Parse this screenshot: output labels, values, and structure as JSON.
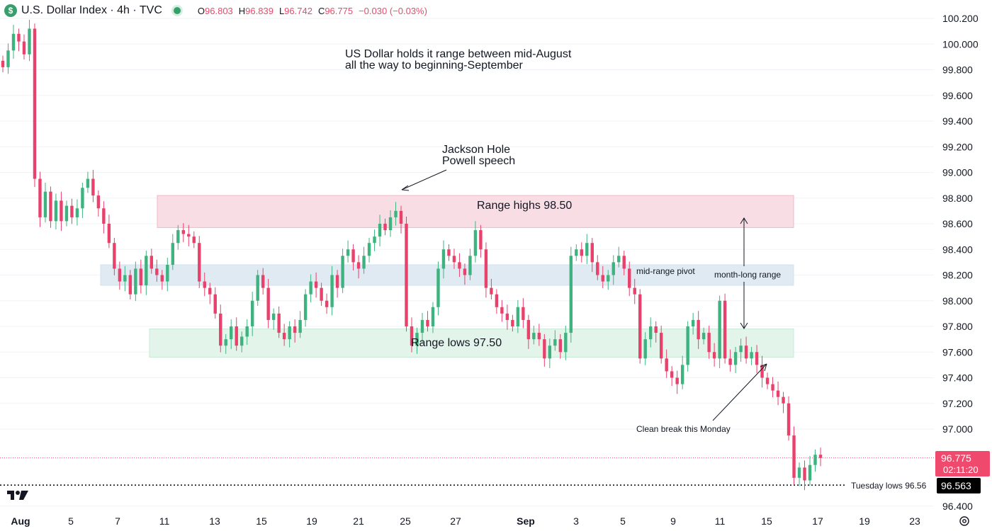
{
  "header": {
    "logo_glyph": "$",
    "title": "U.S. Dollar Index · 4h · TVC",
    "open_label": "O",
    "open": "96.803",
    "high_label": "H",
    "high": "96.839",
    "low_label": "L",
    "low": "96.742",
    "close_label": "C",
    "close": "96.775",
    "change": "−0.030 (−0.03%)"
  },
  "icons": {
    "logo": "tradingview-logo-icon",
    "status": "market-status-dot-icon",
    "settings": "gear-icon"
  },
  "colors": {
    "up": "#3fb37f",
    "down": "#e8416b",
    "range_high": "#f9dde4",
    "pivot": "#dfeaf2",
    "range_low": "#e3f4ea",
    "price_tag": "#ef4a6e"
  },
  "annotations": {
    "headline_1": "US Dollar holds it range between mid-August",
    "headline_2": "all the way to beginning-September",
    "jackson_1": "Jackson Hole",
    "jackson_2": "Powell speech",
    "range_highs": "Range highs 98.50",
    "mid_pivot": "mid-range pivot",
    "month_range": "month-long range",
    "range_lows": "Range lows 97.50",
    "clean_break": "Clean break this Monday",
    "tuesday_lows": "Tuesday lows 96.56"
  },
  "price_tags": {
    "last": "96.775",
    "countdown": "02:11:20",
    "tuesday_low": "96.563"
  },
  "chart_data": {
    "type": "candlestick",
    "title": "U.S. Dollar Index · 4h · TVC",
    "y_axis": {
      "range": [
        96.35,
        100.3
      ],
      "ticks": [
        "100.200",
        "100.000",
        "99.800",
        "99.600",
        "99.400",
        "99.200",
        "99.000",
        "98.800",
        "98.600",
        "98.400",
        "98.200",
        "98.000",
        "97.800",
        "97.600",
        "97.400",
        "97.200",
        "97.000",
        "96.400"
      ]
    },
    "x_axis": {
      "ticks": [
        "Aug",
        "5",
        "7",
        "11",
        "13",
        "15",
        "19",
        "21",
        "25",
        "27",
        "Sep",
        "3",
        "5",
        "9",
        "11",
        "15",
        "17",
        "19",
        "23"
      ]
    },
    "zones": [
      {
        "name": "Range highs 98.50",
        "low": 98.57,
        "high": 98.82
      },
      {
        "name": "mid-range pivot",
        "low": 98.12,
        "high": 98.28
      },
      {
        "name": "Range lows 97.50",
        "low": 97.56,
        "high": 97.78
      }
    ],
    "levels": [
      {
        "name": "last",
        "value": 96.775
      },
      {
        "name": "Tuesday lows 96.56",
        "value": 96.563
      }
    ],
    "closes": [
      99.82,
      99.95,
      100.08,
      100.02,
      99.92,
      100.12,
      98.95,
      98.65,
      98.85,
      98.62,
      98.78,
      98.62,
      98.74,
      98.65,
      98.72,
      98.88,
      98.95,
      98.82,
      98.72,
      98.6,
      98.45,
      98.25,
      98.15,
      98.2,
      98.05,
      98.25,
      98.12,
      98.35,
      98.25,
      98.2,
      98.15,
      98.28,
      98.45,
      98.55,
      98.52,
      98.5,
      98.45,
      98.15,
      98.1,
      98.05,
      97.9,
      97.65,
      97.7,
      97.8,
      97.65,
      97.72,
      97.8,
      98.0,
      98.2,
      98.1,
      97.85,
      97.9,
      97.75,
      97.7,
      97.8,
      97.75,
      97.85,
      98.05,
      98.15,
      98.1,
      98.0,
      97.95,
      98.2,
      98.1,
      98.35,
      98.4,
      98.3,
      98.25,
      98.35,
      98.45,
      98.5,
      98.6,
      98.55,
      98.65,
      98.7,
      98.6,
      97.8,
      97.65,
      97.75,
      97.85,
      97.8,
      97.95,
      98.25,
      98.4,
      98.35,
      98.3,
      98.25,
      98.2,
      98.35,
      98.55,
      98.4,
      98.1,
      98.05,
      97.95,
      97.9,
      97.85,
      97.8,
      97.95,
      97.85,
      97.7,
      97.75,
      97.7,
      97.55,
      97.65,
      97.7,
      97.6,
      97.75,
      98.35,
      98.4,
      98.35,
      98.45,
      98.3,
      98.2,
      98.15,
      98.2,
      98.3,
      98.35,
      98.25,
      98.1,
      98.05,
      97.55,
      97.7,
      97.8,
      97.75,
      97.55,
      97.45,
      97.4,
      97.35,
      97.5,
      97.8,
      97.85,
      97.7,
      97.75,
      97.6,
      97.55,
      98.0,
      97.55,
      97.5,
      97.6,
      97.65,
      97.55,
      97.6,
      97.5,
      97.4,
      97.35,
      97.3,
      97.25,
      97.2,
      96.95,
      96.62,
      96.7,
      96.6,
      96.72,
      96.8,
      96.775
    ]
  }
}
